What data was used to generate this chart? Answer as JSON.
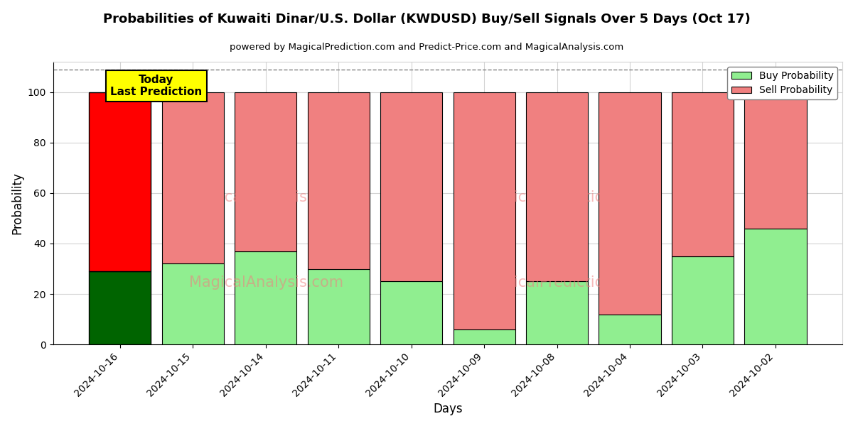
{
  "title": "Probabilities of Kuwaiti Dinar/U.S. Dollar (KWDUSD) Buy/Sell Signals Over 5 Days (Oct 17)",
  "subtitle": "powered by MagicalPrediction.com and Predict-Price.com and MagicalAnalysis.com",
  "xlabel": "Days",
  "ylabel": "Probability",
  "categories": [
    "2024-10-16",
    "2024-10-15",
    "2024-10-14",
    "2024-10-11",
    "2024-10-10",
    "2024-10-09",
    "2024-10-08",
    "2024-10-04",
    "2024-10-03",
    "2024-10-02"
  ],
  "buy_values": [
    29,
    32,
    37,
    30,
    25,
    6,
    25,
    12,
    35,
    46
  ],
  "sell_values": [
    71,
    68,
    63,
    70,
    75,
    94,
    75,
    88,
    65,
    54
  ],
  "buy_color_today": "#006400",
  "sell_color_today": "#FF0000",
  "buy_color_rest": "#90EE90",
  "sell_color_rest": "#F08080",
  "today_annotation": "Today\nLast Prediction",
  "today_annotation_bg": "#FFFF00",
  "ylim": [
    0,
    112
  ],
  "yticks": [
    0,
    20,
    40,
    60,
    80,
    100
  ],
  "dashed_line_y": 109,
  "legend_buy_label": "Buy Probability",
  "legend_sell_label": "Sell Probability",
  "bar_width": 0.85,
  "figsize": [
    12,
    6
  ],
  "dpi": 100
}
